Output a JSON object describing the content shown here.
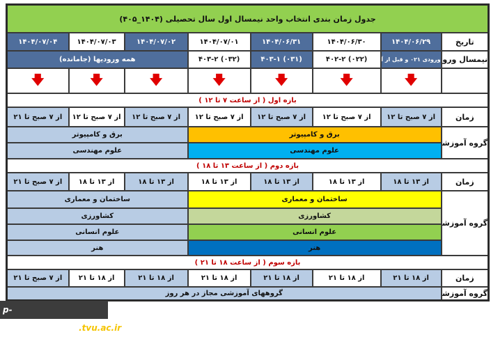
{
  "title": "جدول زمان بندی انتخاب واحد نیمسال اول سال تحصیلی (۱۴۰۴_۴۰۵)",
  "labels": {
    "date": "تاریخ",
    "entry": "نیمسال ورود",
    "time": "زمان",
    "group": "گروه آموزشی"
  },
  "dates": [
    "۱۴۰۴/۰۶/۲۹",
    "۱۴۰۴/۰۶/۳۰",
    "۱۴۰۴/۰۶/۳۱",
    "۱۴۰۴/۰۷/۰۱",
    "۱۴۰۴/۰۷/۰۲",
    "۱۴۰۴/۰۷/۰۳",
    "۱۴۰۴/۰۷/۰۴"
  ],
  "entries": [
    "ورودی ۰۲۱ و قبل از آن",
    "۴۰۲-۲ (۰۲۲)",
    "۴۰۳-۱ (۰۳۱)",
    "۴۰۳-۲ (۰۳۲)",
    "همه ورودیها (جامانده)"
  ],
  "arrow_icon": "down-arrow",
  "band1": "بازه اول ( از ساعت ۷ تا ۱۲ )",
  "times1": [
    "از ۷ صبح تا ۱۲",
    "از ۷ صبح تا ۱۲",
    "از ۷ صبح تا ۱۲",
    "از ۷ صبح تا ۱۲",
    "از ۷ صبح تا ۱۲",
    "از ۷ صبح تا ۱۲",
    "از ۷ صبح تا ۲۱"
  ],
  "groups1": [
    "برق و کامپیوتر",
    "علوم مهندسی"
  ],
  "band2": "بازه دوم ( از ساعت ۱۳ تا ۱۸ )",
  "times2": [
    "از ۱۳ تا ۱۸",
    "از ۱۳ تا ۱۸",
    "از ۱۳ تا ۱۸",
    "از ۱۳ تا ۱۸",
    "از ۱۳ تا ۱۸",
    "از ۱۳ تا ۱۸",
    "از ۷ صبح تا ۲۱"
  ],
  "groups2": [
    "ساختمان و معماری",
    "کشاورزی",
    "علوم انسانی",
    "هنر"
  ],
  "band3": "بازه سوم ( از ساعت ۱۸ تا ۲۱ )",
  "times3": [
    "از ۱۸ تا ۲۱",
    "از ۱۸ تا ۲۱",
    "از ۱۸ تا ۲۱",
    "از ۱۸ تا ۲۱",
    "از ۱۸ تا ۲۱",
    "از ۱۸ تا ۲۱",
    "از ۷ صبح تا ۲۱"
  ],
  "groups3": "گروههای آموزشی مجاز در هر روز",
  "watermark": {
    "a": "p-islamabadgharb",
    "b": ".tvu.ac.ir"
  },
  "colors": {
    "title": "#92d050",
    "dark_blue": "#4f6e9c",
    "light_blue": "#b8cce4",
    "orange": "#ffc000",
    "cyan": "#00b0f0",
    "yellow": "#ffff00",
    "light_green": "#c4d79b",
    "green": "#92d050",
    "blue": "#0070c0",
    "band_text": "#c00000"
  }
}
